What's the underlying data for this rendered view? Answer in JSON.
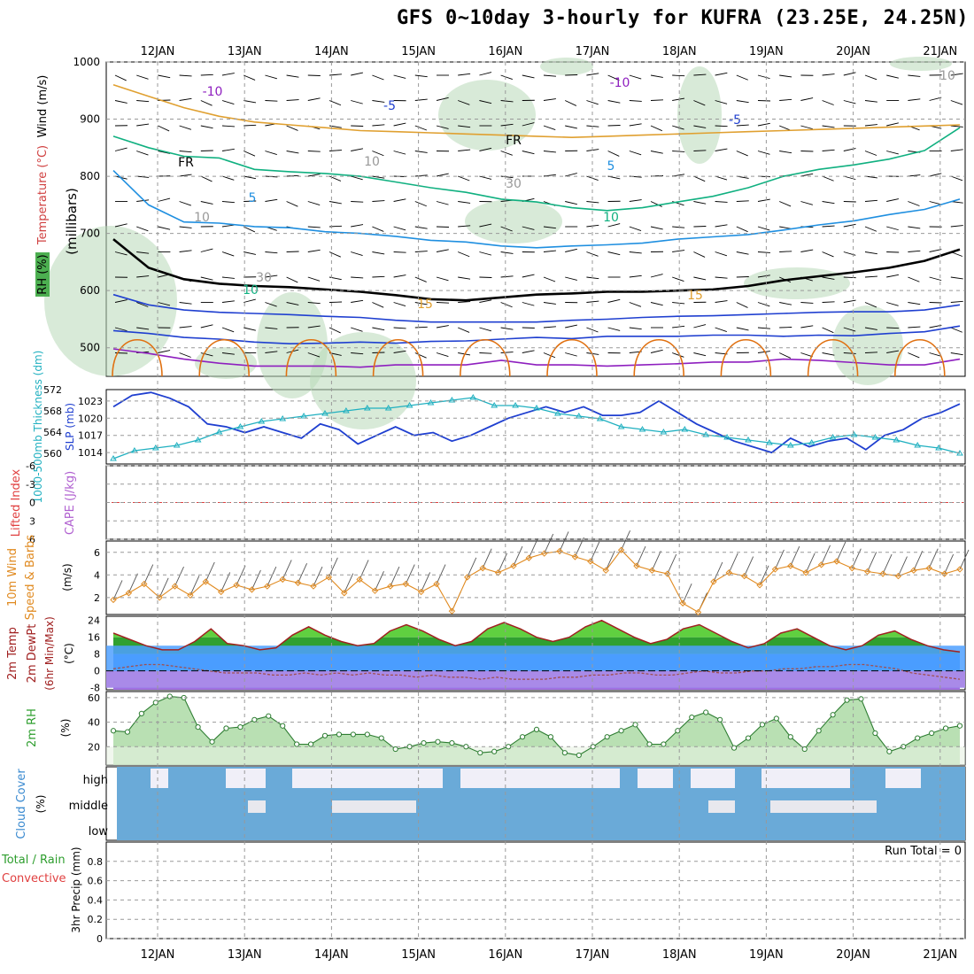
{
  "title": "GFS 0~10day 3-hourly for KUFRA (23.25E, 24.25N)",
  "colors": {
    "temp_minus10": "#8e1fbf",
    "temp_minus5": "#1f3fd0",
    "temp_freezing": "#000000",
    "temp_5": "#1f8fe0",
    "temp_10": "#10b080",
    "temp_15": "#e0a030",
    "temp_20": "#e07010",
    "temp_25": "#d01070",
    "rh_shade": "#b8d8b8",
    "slp": "#1f3fd0",
    "thickness": "#20b0c0",
    "lifted_index": "#e04040",
    "wind10": "#e08a20",
    "cloud": "#6aaad8",
    "rh2m": "#4caf50",
    "dewpt": "#a05050",
    "temp_line": "#a02020"
  },
  "chart_data": [
    {
      "type": "heatmap",
      "panel": "upper_air_cross_section",
      "left_label": {
        "rh": "RH (%)",
        "temperature": "Temperature (°C)",
        "wind": "Wind (m/s)"
      },
      "ylabel": "(millibars)",
      "y_ticks": [
        "500",
        "600",
        "700",
        "800",
        "900",
        "1000"
      ],
      "ylim": [
        1000,
        450
      ],
      "x_ticks": [
        "12JAN",
        "13JAN",
        "14JAN",
        "15JAN",
        "16JAN",
        "17JAN",
        "18JAN",
        "19JAN",
        "20JAN",
        "21JAN"
      ],
      "contour_labels": [
        "-10",
        "-10",
        "-5",
        "-5",
        "FR",
        "FR",
        "5",
        "5",
        "10",
        "10",
        "15",
        "15",
        "10",
        "10",
        "30",
        "30",
        "10"
      ],
      "series": [
        {
          "name": "-10",
          "color_key": "temp_minus10",
          "pressure": [
            498,
            490,
            480,
            473,
            468,
            468,
            468,
            466,
            470,
            470,
            470,
            478,
            470,
            470,
            468,
            470,
            472,
            475,
            475,
            480,
            478,
            474,
            470,
            470,
            480
          ]
        },
        {
          "name": "-5",
          "color_key": "temp_minus5",
          "pressure": [
            530,
            525,
            518,
            515,
            510,
            507,
            508,
            510,
            508,
            511,
            512,
            515,
            518,
            516,
            520,
            520,
            520,
            522,
            522,
            520,
            522,
            521,
            525,
            528,
            538
          ]
        },
        {
          "name": "-5",
          "color_key": "temp_minus5",
          "pressure": [
            593,
            575,
            566,
            562,
            560,
            558,
            555,
            553,
            548,
            545,
            545,
            545,
            545,
            548,
            550,
            553,
            555,
            556,
            558,
            560,
            562,
            563,
            563,
            566,
            575
          ]
        },
        {
          "name": "FR",
          "color_key": "temp_freezing",
          "pressure": [
            690,
            640,
            620,
            612,
            608,
            606,
            602,
            598,
            592,
            585,
            583,
            588,
            593,
            595,
            598,
            598,
            600,
            602,
            608,
            618,
            625,
            632,
            640,
            652,
            672
          ]
        },
        {
          "name": "5",
          "color_key": "temp_5",
          "pressure": [
            810,
            750,
            720,
            718,
            712,
            710,
            703,
            700,
            695,
            688,
            685,
            678,
            675,
            678,
            680,
            683,
            690,
            694,
            698,
            706,
            715,
            722,
            733,
            742,
            760
          ]
        },
        {
          "name": "10",
          "color_key": "temp_10",
          "pressure": [
            870,
            850,
            835,
            832,
            812,
            808,
            805,
            800,
            790,
            780,
            772,
            760,
            755,
            745,
            740,
            745,
            755,
            765,
            780,
            800,
            812,
            820,
            830,
            845,
            885
          ]
        },
        {
          "name": "15",
          "color_key": "temp_15",
          "pressure": [
            960,
            940,
            920,
            905,
            895,
            890,
            885,
            880,
            878,
            876,
            874,
            872,
            870,
            868,
            870,
            872,
            874,
            876,
            878,
            880,
            882,
            884,
            886,
            888,
            890
          ]
        }
      ]
    },
    {
      "type": "line",
      "panel": "thickness_slp",
      "left_label": {
        "thickness": "1000-500mb Thickness (dm)",
        "slp": "SLP (mb)"
      },
      "thickness_ticks": [
        "572",
        "568",
        "564",
        "560"
      ],
      "slp_ticks": [
        "1023",
        "1020",
        "1017",
        "1014"
      ],
      "thickness_ylim": [
        558,
        572
      ],
      "slp_ylim": [
        1012,
        1025
      ],
      "series": [
        {
          "name": "SLP (mb)",
          "color_key": "slp",
          "values": [
            1022.0,
            1024.0,
            1024.5,
            1023.5,
            1022.0,
            1019.0,
            1018.5,
            1017.5,
            1018.5,
            1017.5,
            1016.5,
            1019.0,
            1018.0,
            1015.5,
            1017.0,
            1018.5,
            1017.0,
            1017.5,
            1016.0,
            1017.0,
            1018.5,
            1020.0,
            1021.0,
            1022.0,
            1021.0,
            1022.0,
            1020.5,
            1020.5,
            1021.0,
            1023.0,
            1021.0,
            1019.0,
            1017.5,
            1016.0,
            1015.0,
            1014.0,
            1016.5,
            1015.0,
            1016.0,
            1016.5,
            1014.5,
            1017.0,
            1018.0,
            1020.0,
            1021.0,
            1022.5
          ]
        },
        {
          "name": "1000-500mb Thickness (dm)",
          "color_key": "thickness",
          "values": [
            559.0,
            560.5,
            561.0,
            561.5,
            562.5,
            564.0,
            565.0,
            566.0,
            566.5,
            567.0,
            567.5,
            568.0,
            568.5,
            568.5,
            569.0,
            569.5,
            570.0,
            570.5,
            569.0,
            569.0,
            568.5,
            567.5,
            567.0,
            566.5,
            565.0,
            564.5,
            564.0,
            564.5,
            563.5,
            563.0,
            562.5,
            562.0,
            561.5,
            562.0,
            563.0,
            563.5,
            563.0,
            562.5,
            561.5,
            561.0,
            560.0
          ]
        }
      ]
    },
    {
      "type": "line",
      "panel": "lifted_index_cape",
      "left_label": {
        "li": "Lifted Index",
        "cape": "CAPE (J/kg)"
      },
      "y_ticks": [
        "-6",
        "-3",
        "0",
        "3",
        "6"
      ],
      "ylim": [
        -6,
        6
      ],
      "series": [
        {
          "name": "Lifted Index zero line",
          "color_key": "lifted_index",
          "values": [
            0,
            0
          ]
        }
      ]
    },
    {
      "type": "line",
      "panel": "wind10m",
      "left_label": {
        "title": "10m Wind",
        "speed": "Speed & Barbs",
        "unit": "(m/s)"
      },
      "y_ticks": [
        "2",
        "4",
        "6"
      ],
      "ylim": [
        0.5,
        7
      ],
      "series": [
        {
          "name": "10m wind speed",
          "color_key": "wind10",
          "values": [
            1.8,
            2.4,
            3.2,
            2.0,
            3.0,
            2.2,
            3.4,
            2.5,
            3.1,
            2.7,
            3.0,
            3.6,
            3.3,
            3.0,
            3.8,
            2.4,
            3.6,
            2.6,
            3.0,
            3.2,
            2.5,
            3.2,
            0.8,
            3.8,
            4.6,
            4.2,
            4.8,
            5.5,
            5.9,
            6.1,
            5.6,
            5.2,
            4.4,
            6.2,
            4.8,
            4.4,
            4.1,
            1.5,
            0.7,
            3.4,
            4.2,
            3.9,
            3.1,
            4.5,
            4.8,
            4.2,
            4.9,
            5.2,
            4.6,
            4.3,
            4.1,
            3.9,
            4.4,
            4.6,
            4.1,
            4.5
          ]
        }
      ]
    },
    {
      "type": "area",
      "panel": "temp2m",
      "left_label": {
        "temp": "2m Temp",
        "dewpt": "2m DewPt",
        "minmax": "(6hr Min/Max)",
        "unit": "(°C)"
      },
      "y_ticks": [
        "24",
        "16",
        "8",
        "0",
        "-8"
      ],
      "ylim": [
        -9,
        26
      ],
      "series": [
        {
          "name": "2m Temp",
          "color_key": "temp_line",
          "values": [
            18,
            15,
            12,
            10,
            10,
            14,
            20,
            13,
            12,
            10,
            11,
            17,
            21,
            17,
            14,
            12,
            13,
            19,
            22,
            19,
            15,
            12,
            14,
            20,
            23,
            20,
            16,
            14,
            16,
            21,
            24,
            20,
            16,
            13,
            15,
            20,
            22,
            18,
            14,
            11,
            13,
            18,
            20,
            16,
            12,
            10,
            12,
            17,
            19,
            15,
            12,
            10,
            9
          ]
        },
        {
          "name": "2m DewPt",
          "color_key": "dewpt",
          "values": [
            1,
            2,
            3,
            3,
            2,
            1,
            0,
            -1,
            -1,
            -1,
            -2,
            -2,
            -1,
            -2,
            -1,
            -2,
            -1,
            -2,
            -2,
            -3,
            -2,
            -3,
            -3,
            -4,
            -3,
            -4,
            -4,
            -4,
            -3,
            -3,
            -2,
            -2,
            -1,
            -1,
            -2,
            -2,
            -1,
            0,
            -1,
            -1,
            0,
            0,
            1,
            1,
            2,
            2,
            3,
            3,
            2,
            1,
            -1,
            -2,
            -3,
            -4
          ]
        }
      ]
    },
    {
      "type": "area",
      "panel": "rh2m",
      "left_label": {
        "rh": "2m RH",
        "unit": "(%)"
      },
      "y_ticks": [
        "20",
        "40",
        "60"
      ],
      "ylim": [
        5,
        65
      ],
      "series": [
        {
          "name": "2m RH",
          "color_key": "rh2m",
          "values": [
            33,
            32,
            47,
            56,
            61,
            60,
            36,
            24,
            35,
            36,
            42,
            45,
            37,
            22,
            22,
            29,
            30,
            30,
            30,
            27,
            18,
            20,
            23,
            24,
            23,
            20,
            15,
            16,
            20,
            28,
            34,
            28,
            15,
            13,
            20,
            28,
            33,
            38,
            22,
            22,
            33,
            44,
            48,
            42,
            19,
            27,
            38,
            43,
            28,
            18,
            33,
            46,
            58,
            59,
            31,
            16,
            20,
            27,
            31,
            35,
            37
          ]
        }
      ]
    },
    {
      "type": "heatmap",
      "panel": "cloud_cover",
      "left_label": {
        "title": "Cloud Cover",
        "unit": "(%)"
      },
      "levels": [
        "high",
        "middle",
        "low"
      ]
    },
    {
      "type": "bar",
      "panel": "precip",
      "left_label": {
        "total": "Total / Rain",
        "convective": "Convective",
        "unit": "3hr Precip (mm)"
      },
      "annotation": "Run Total = 0",
      "y_ticks": [
        "0",
        "0.2",
        "0.4",
        "0.6",
        "0.8"
      ],
      "ylim": [
        0,
        1
      ],
      "values": []
    }
  ]
}
